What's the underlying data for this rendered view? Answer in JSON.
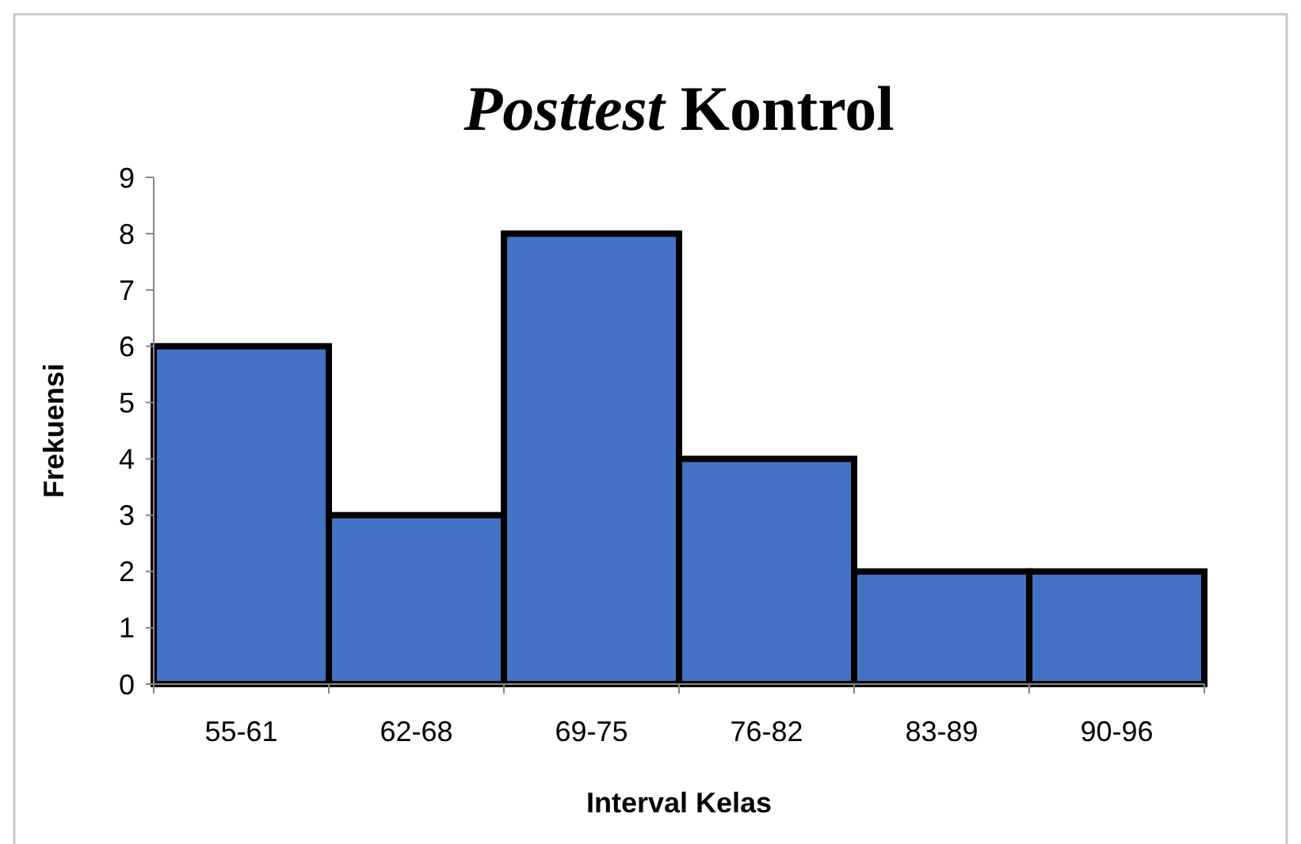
{
  "chart_data": {
    "type": "bar",
    "title": "Posttest Kontrol",
    "xlabel": "Interval Kelas",
    "ylabel": "Frekuensi",
    "categories": [
      "55-61",
      "62-68",
      "69-75",
      "76-82",
      "83-89",
      "90-96"
    ],
    "values": [
      6,
      3,
      8,
      4,
      2,
      2
    ],
    "color": "#4472c4",
    "ylim": [
      0,
      9
    ],
    "yticks": [
      0,
      1,
      2,
      3,
      4,
      5,
      6,
      7,
      8,
      9
    ],
    "grid": false
  }
}
